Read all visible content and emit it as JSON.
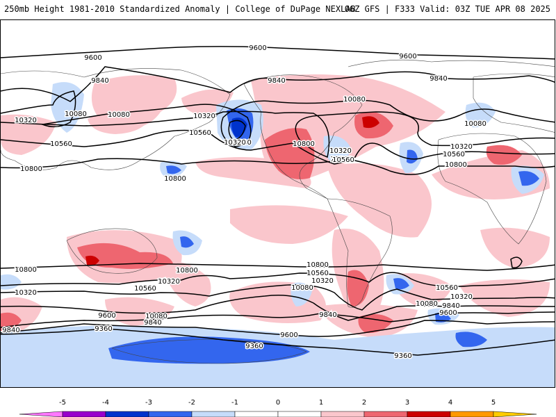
{
  "header": {
    "left": "250mb Height 1981-2010 Standardized Anomaly | College of DuPage NEXLAB",
    "right": "06Z GFS | F333 Valid: 03Z TUE APR 08 2025"
  },
  "colors": {
    "neg5": "#ff77ff",
    "neg4": "#9900cc",
    "neg3": "#0033cc",
    "neg2": "#3366ee",
    "neg1": "#c6dcfa",
    "zero": "#ffffff",
    "pos1": "#fac6cc",
    "pos2": "#ee6670",
    "pos3": "#cc0000",
    "pos4": "#ff9900",
    "pos5": "#ffcc00",
    "contour": "#000000",
    "land": "#444444"
  },
  "contour_labels": [
    {
      "text": "9600"
    },
    {
      "text": "9600"
    },
    {
      "text": "9600"
    },
    {
      "text": "9840"
    },
    {
      "text": "9840"
    },
    {
      "text": "9840"
    },
    {
      "text": "10080"
    },
    {
      "text": "10080"
    },
    {
      "text": "10080"
    },
    {
      "text": "10080"
    },
    {
      "text": "10320"
    },
    {
      "text": "10320"
    },
    {
      "text": "10320"
    },
    {
      "text": "10320"
    },
    {
      "text": "10560"
    },
    {
      "text": "10560"
    },
    {
      "text": "10560"
    },
    {
      "text": "10560"
    },
    {
      "text": "10800"
    },
    {
      "text": "10800"
    },
    {
      "text": "10800"
    },
    {
      "text": "10800"
    },
    {
      "text": "10800"
    },
    {
      "text": "10800"
    },
    {
      "text": "10560"
    },
    {
      "text": "10320"
    },
    {
      "text": "10560"
    },
    {
      "text": "10320"
    },
    {
      "text": "10080"
    },
    {
      "text": "9840"
    },
    {
      "text": "9600"
    },
    {
      "text": "9360"
    },
    {
      "text": "10320"
    },
    {
      "text": "10080"
    },
    {
      "text": "9840"
    },
    {
      "text": "9600"
    },
    {
      "text": "9360"
    },
    {
      "text": "9360"
    },
    {
      "text": "10560"
    },
    {
      "text": "10320"
    },
    {
      "text": "10080"
    },
    {
      "text": "9840"
    },
    {
      "text": "9600"
    },
    {
      "text": "9840"
    },
    {
      "text": "10080"
    },
    {
      "text": "10320"
    },
    {
      "text": "10560"
    },
    {
      "text": "10800"
    }
  ],
  "colorbar": {
    "ticks": [
      "-5",
      "-4",
      "-3",
      "-2",
      "-1",
      "0",
      "1",
      "2",
      "3",
      "4",
      "5"
    ]
  }
}
